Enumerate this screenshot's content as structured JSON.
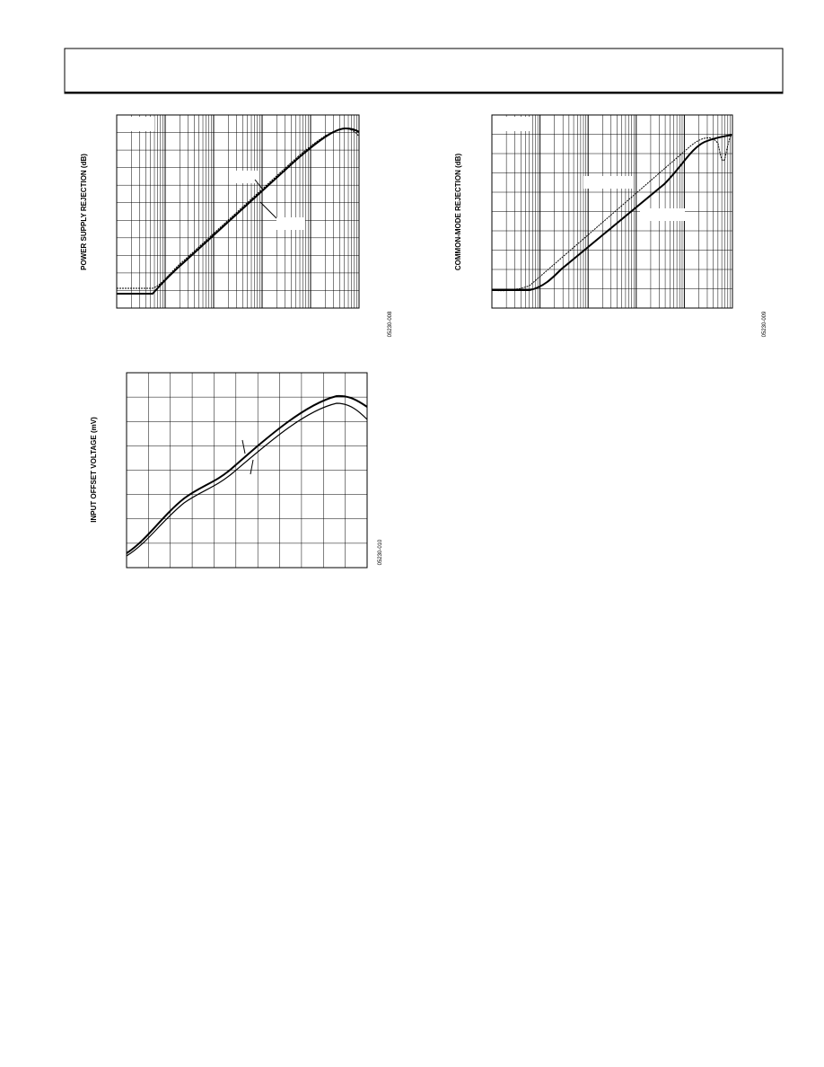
{
  "figures": [
    {
      "y_label": "POWER SUPPLY REJECTION (dB)",
      "figure_id": "05230-008"
    },
    {
      "y_label": "COMMON-MODE REJECTION (dB)",
      "figure_id": "05230-009"
    },
    {
      "y_label": "INPUT OFFSET VOLTAGE (mV)",
      "figure_id": "05230-010"
    }
  ]
}
